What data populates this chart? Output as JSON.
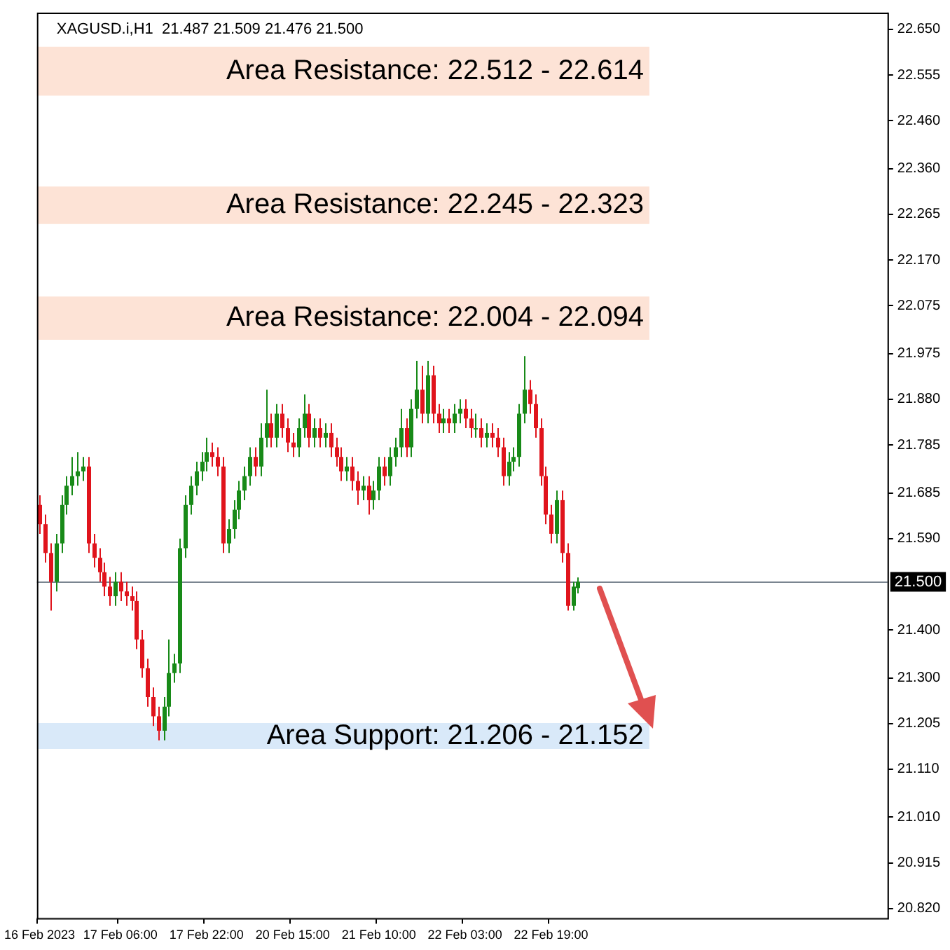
{
  "chart_data": {
    "type": "candlestick",
    "title": "XAGUSD.i,H1  21.487 21.509 21.476 21.500",
    "categories": [
      "16 Feb 2023",
      null,
      null,
      null,
      null,
      null,
      null,
      null,
      null,
      null,
      null,
      null,
      null,
      null,
      null,
      "17 Feb 06:00",
      null,
      null,
      null,
      null,
      null,
      null,
      null,
      null,
      null,
      null,
      null,
      null,
      null,
      null,
      null,
      "17 Feb 22:00",
      null,
      null,
      null,
      null,
      null,
      null,
      null,
      null,
      null,
      null,
      null,
      null,
      null,
      null,
      null,
      "20 Feb 15:00",
      null,
      null,
      null,
      null,
      null,
      null,
      null,
      null,
      null,
      null,
      null,
      null,
      null,
      null,
      null,
      "21 Feb 10:00",
      null,
      null,
      null,
      null,
      null,
      null,
      null,
      null,
      null,
      null,
      null,
      null,
      null,
      null,
      null,
      "22 Feb 03:00",
      null,
      null,
      null,
      null,
      null,
      null,
      null,
      null,
      null,
      null,
      null,
      null,
      null,
      null,
      null,
      "22 Feb 19:00",
      null,
      null,
      null,
      null,
      null,
      null,
      null,
      null,
      null,
      null,
      null,
      null,
      null,
      null,
      null,
      null,
      null,
      null,
      null,
      null,
      null,
      null,
      null,
      null,
      null,
      null,
      null,
      null,
      null,
      null,
      null,
      null,
      null,
      null,
      null,
      null,
      null,
      null,
      null,
      null,
      null,
      null,
      null,
      null,
      null,
      null,
      null,
      null,
      null,
      null,
      null,
      null,
      null,
      null,
      null,
      null,
      null,
      null,
      null,
      null,
      null,
      null
    ],
    "ohlc": [
      [
        21.66,
        21.68,
        21.6,
        21.62
      ],
      [
        21.62,
        21.64,
        21.54,
        21.56
      ],
      [
        21.56,
        21.58,
        21.44,
        21.5
      ],
      [
        21.5,
        21.6,
        21.48,
        21.58
      ],
      [
        21.58,
        21.68,
        21.56,
        21.66
      ],
      [
        21.66,
        21.72,
        21.64,
        21.7
      ],
      [
        21.7,
        21.76,
        21.68,
        21.72
      ],
      [
        21.72,
        21.77,
        21.7,
        21.73
      ],
      [
        21.73,
        21.76,
        21.71,
        21.74
      ],
      [
        21.74,
        21.76,
        21.56,
        21.58
      ],
      [
        21.58,
        21.6,
        21.53,
        21.55
      ],
      [
        21.55,
        21.57,
        21.5,
        21.52
      ],
      [
        21.52,
        21.54,
        21.47,
        21.49
      ],
      [
        21.49,
        21.51,
        21.45,
        21.47
      ],
      [
        21.47,
        21.52,
        21.45,
        21.5
      ],
      [
        21.5,
        21.52,
        21.46,
        21.48
      ],
      [
        21.48,
        21.5,
        21.45,
        21.47
      ],
      [
        21.47,
        21.49,
        21.44,
        21.46
      ],
      [
        21.46,
        21.48,
        21.36,
        21.38
      ],
      [
        21.38,
        21.4,
        21.3,
        21.32
      ],
      [
        21.32,
        21.34,
        21.24,
        21.26
      ],
      [
        21.26,
        21.28,
        21.2,
        21.22
      ],
      [
        21.22,
        21.24,
        21.17,
        21.19
      ],
      [
        21.19,
        21.26,
        21.17,
        21.24
      ],
      [
        21.24,
        21.38,
        21.22,
        21.31
      ],
      [
        21.31,
        21.35,
        21.29,
        21.33
      ],
      [
        21.33,
        21.59,
        21.31,
        21.57
      ],
      [
        21.57,
        21.68,
        21.55,
        21.66
      ],
      [
        21.66,
        21.72,
        21.64,
        21.7
      ],
      [
        21.7,
        21.75,
        21.68,
        21.73
      ],
      [
        21.73,
        21.77,
        21.71,
        21.75
      ],
      [
        21.75,
        21.8,
        21.73,
        21.77
      ],
      [
        21.77,
        21.79,
        21.74,
        21.76
      ],
      [
        21.76,
        21.78,
        21.72,
        21.74
      ],
      [
        21.74,
        21.76,
        21.56,
        21.58
      ],
      [
        21.58,
        21.63,
        21.56,
        21.61
      ],
      [
        21.61,
        21.67,
        21.59,
        21.65
      ],
      [
        21.65,
        21.71,
        21.63,
        21.69
      ],
      [
        21.69,
        21.74,
        21.67,
        21.72
      ],
      [
        21.72,
        21.78,
        21.7,
        21.76
      ],
      [
        21.76,
        21.78,
        21.72,
        21.74
      ],
      [
        21.74,
        21.83,
        21.72,
        21.8
      ],
      [
        21.8,
        21.9,
        21.78,
        21.83
      ],
      [
        21.83,
        21.85,
        21.78,
        21.8
      ],
      [
        21.8,
        21.87,
        21.78,
        21.85
      ],
      [
        21.85,
        21.87,
        21.8,
        21.82
      ],
      [
        21.82,
        21.84,
        21.77,
        21.79
      ],
      [
        21.79,
        21.81,
        21.76,
        21.78
      ],
      [
        21.78,
        21.84,
        21.76,
        21.82
      ],
      [
        21.82,
        21.89,
        21.8,
        21.85
      ],
      [
        21.85,
        21.87,
        21.78,
        21.8
      ],
      [
        21.8,
        21.84,
        21.78,
        21.82
      ],
      [
        21.82,
        21.84,
        21.78,
        21.8
      ],
      [
        21.8,
        21.83,
        21.78,
        21.81
      ],
      [
        21.81,
        21.83,
        21.76,
        21.78
      ],
      [
        21.78,
        21.8,
        21.74,
        21.76
      ],
      [
        21.76,
        21.78,
        21.71,
        21.73
      ],
      [
        21.73,
        21.76,
        21.71,
        21.74
      ],
      [
        21.74,
        21.76,
        21.69,
        21.71
      ],
      [
        21.71,
        21.73,
        21.66,
        21.69
      ],
      [
        21.69,
        21.72,
        21.67,
        21.7
      ],
      [
        21.7,
        21.72,
        21.64,
        21.67
      ],
      [
        21.67,
        21.71,
        21.65,
        21.69
      ],
      [
        21.69,
        21.76,
        21.67,
        21.74
      ],
      [
        21.74,
        21.76,
        21.7,
        21.72
      ],
      [
        21.72,
        21.78,
        21.7,
        21.76
      ],
      [
        21.76,
        21.8,
        21.74,
        21.78
      ],
      [
        21.78,
        21.86,
        21.76,
        21.82
      ],
      [
        21.82,
        21.84,
        21.76,
        21.78
      ],
      [
        21.78,
        21.88,
        21.76,
        21.86
      ],
      [
        21.86,
        21.96,
        21.84,
        21.9
      ],
      [
        21.9,
        21.95,
        21.83,
        21.85
      ],
      [
        21.85,
        21.96,
        21.83,
        21.93
      ],
      [
        21.93,
        21.95,
        21.83,
        21.85
      ],
      [
        21.85,
        21.87,
        21.81,
        21.83
      ],
      [
        21.83,
        21.86,
        21.81,
        21.84
      ],
      [
        21.84,
        21.86,
        21.81,
        21.83
      ],
      [
        21.83,
        21.87,
        21.81,
        21.85
      ],
      [
        21.85,
        21.88,
        21.83,
        21.86
      ],
      [
        21.86,
        21.88,
        21.82,
        21.84
      ],
      [
        21.84,
        21.86,
        21.8,
        21.82
      ],
      [
        21.82,
        21.85,
        21.8,
        21.82
      ],
      [
        21.82,
        21.84,
        21.78,
        21.8
      ],
      [
        21.8,
        21.83,
        21.78,
        21.81
      ],
      [
        21.81,
        21.83,
        21.78,
        21.8
      ],
      [
        21.8,
        21.82,
        21.76,
        21.78
      ],
      [
        21.78,
        21.8,
        21.7,
        21.72
      ],
      [
        21.72,
        21.77,
        21.7,
        21.75
      ],
      [
        21.75,
        21.78,
        21.73,
        21.76
      ],
      [
        21.76,
        21.87,
        21.74,
        21.85
      ],
      [
        21.85,
        21.97,
        21.83,
        21.9
      ],
      [
        21.9,
        21.92,
        21.85,
        21.87
      ],
      [
        21.87,
        21.89,
        21.8,
        21.82
      ],
      [
        21.82,
        21.84,
        21.7,
        21.72
      ],
      [
        21.72,
        21.74,
        21.62,
        21.64
      ],
      [
        21.64,
        21.66,
        21.58,
        21.6
      ],
      [
        21.6,
        21.69,
        21.58,
        21.67
      ],
      [
        21.67,
        21.69,
        21.54,
        21.56
      ],
      [
        21.56,
        21.58,
        21.44,
        21.45
      ],
      [
        21.45,
        21.5,
        21.44,
        21.49
      ],
      [
        21.487,
        21.509,
        21.476,
        21.5
      ],
      null,
      null,
      null,
      null,
      null,
      null,
      null,
      null,
      null,
      null,
      null,
      null,
      null,
      null,
      null,
      null,
      null,
      null,
      null,
      null,
      null,
      null,
      null,
      null,
      null,
      null,
      null,
      null,
      null,
      null,
      null,
      null,
      null,
      null,
      null,
      null,
      null,
      null,
      null,
      null,
      null,
      null,
      null,
      null,
      null,
      null,
      null,
      null,
      null,
      null,
      null,
      null,
      null,
      null,
      null,
      null,
      null
    ],
    "ylim": [
      20.8,
      22.685
    ],
    "yticks": [
      {
        "value": 22.65,
        "label": "22.650"
      },
      {
        "value": 22.555,
        "label": "22.555"
      },
      {
        "value": 22.46,
        "label": "22.460"
      },
      {
        "value": 22.36,
        "label": "22.360"
      },
      {
        "value": 22.265,
        "label": "22.265"
      },
      {
        "value": 22.17,
        "label": "22.170"
      },
      {
        "value": 22.075,
        "label": "22.075"
      },
      {
        "value": 21.975,
        "label": "21.975"
      },
      {
        "value": 21.88,
        "label": "21.880"
      },
      {
        "value": 21.785,
        "label": "21.785"
      },
      {
        "value": 21.685,
        "label": "21.685"
      },
      {
        "value": 21.59,
        "label": "21.590"
      },
      {
        "value": 21.4,
        "label": "21.400"
      },
      {
        "value": 21.3,
        "label": "21.300"
      },
      {
        "value": 21.205,
        "label": "21.205"
      },
      {
        "value": 21.11,
        "label": "21.110"
      },
      {
        "value": 21.01,
        "label": "21.010"
      },
      {
        "value": 20.915,
        "label": "20.915"
      },
      {
        "value": 20.82,
        "label": "20.820"
      }
    ],
    "bands": [
      {
        "axis": "y",
        "from": 22.512,
        "to": 22.614,
        "label": "Area Resistance: 22.512 - 22.614",
        "color": "#fde3d6"
      },
      {
        "axis": "y",
        "from": 22.245,
        "to": 22.323,
        "label": "Area Resistance: 22.245 - 22.323",
        "color": "#fde3d6"
      },
      {
        "axis": "y",
        "from": 22.004,
        "to": 22.094,
        "label": "Area Resistance: 22.004 - 22.094",
        "color": "#fde3d6"
      },
      {
        "axis": "y",
        "from": 21.152,
        "to": 21.206,
        "label": "Area Support: 21.206 - 21.152",
        "color": "#d9e9f9"
      }
    ],
    "ref_lines": [
      {
        "axis": "y",
        "value": 21.5,
        "label": "21.500",
        "color": "#7a8590"
      }
    ],
    "grid": false,
    "legend": false
  }
}
